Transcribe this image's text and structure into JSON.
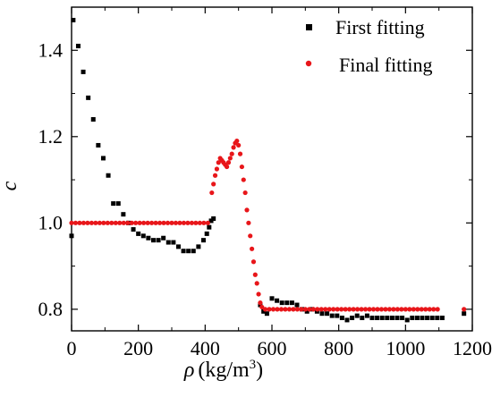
{
  "chart_data": {
    "type": "scatter",
    "xlabel": "ρ (kg/m³)",
    "xlabel_symbol": "ρ",
    "xlabel_unit": "(kg/m",
    "xlabel_sup": "3",
    "xlabel_close": ")",
    "ylabel": "c",
    "xlim": [
      0,
      1200
    ],
    "ylim": [
      0.75,
      1.5
    ],
    "xticks": [
      0,
      200,
      400,
      600,
      800,
      1000,
      1200
    ],
    "yticks": [
      0.8,
      1.0,
      1.2,
      1.4
    ],
    "xtick_labels": [
      "0",
      "200",
      "400",
      "600",
      "800",
      "1000",
      "1200"
    ],
    "ytick_labels": [
      "0.8",
      "1.0",
      "1.2",
      "1.4"
    ],
    "legend_position": "top-right",
    "grid": false,
    "series": [
      {
        "name": "First fitting",
        "color": "#000000",
        "marker": "square",
        "points": [
          [
            0,
            0.97
          ],
          [
            5,
            1.47
          ],
          [
            20,
            1.41
          ],
          [
            35,
            1.35
          ],
          [
            50,
            1.29
          ],
          [
            65,
            1.24
          ],
          [
            80,
            1.18
          ],
          [
            95,
            1.15
          ],
          [
            110,
            1.11
          ],
          [
            125,
            1.045
          ],
          [
            140,
            1.045
          ],
          [
            155,
            1.02
          ],
          [
            170,
            1.0
          ],
          [
            185,
            0.985
          ],
          [
            200,
            0.975
          ],
          [
            215,
            0.97
          ],
          [
            230,
            0.965
          ],
          [
            245,
            0.96
          ],
          [
            260,
            0.96
          ],
          [
            275,
            0.965
          ],
          [
            290,
            0.955
          ],
          [
            305,
            0.955
          ],
          [
            320,
            0.945
          ],
          [
            335,
            0.935
          ],
          [
            350,
            0.935
          ],
          [
            365,
            0.935
          ],
          [
            380,
            0.945
          ],
          [
            395,
            0.96
          ],
          [
            405,
            0.975
          ],
          [
            412,
            0.99
          ],
          [
            418,
            1.005
          ],
          [
            425,
            1.01
          ],
          [
            565,
            0.81
          ],
          [
            575,
            0.795
          ],
          [
            585,
            0.79
          ],
          [
            600,
            0.825
          ],
          [
            615,
            0.82
          ],
          [
            630,
            0.815
          ],
          [
            645,
            0.815
          ],
          [
            660,
            0.815
          ],
          [
            675,
            0.81
          ],
          [
            690,
            0.8
          ],
          [
            705,
            0.795
          ],
          [
            720,
            0.8
          ],
          [
            735,
            0.795
          ],
          [
            750,
            0.79
          ],
          [
            765,
            0.79
          ],
          [
            780,
            0.785
          ],
          [
            795,
            0.785
          ],
          [
            810,
            0.78
          ],
          [
            825,
            0.775
          ],
          [
            840,
            0.78
          ],
          [
            855,
            0.785
          ],
          [
            870,
            0.78
          ],
          [
            885,
            0.785
          ],
          [
            900,
            0.78
          ],
          [
            915,
            0.78
          ],
          [
            930,
            0.78
          ],
          [
            945,
            0.78
          ],
          [
            960,
            0.78
          ],
          [
            975,
            0.78
          ],
          [
            990,
            0.78
          ],
          [
            1005,
            0.775
          ],
          [
            1020,
            0.78
          ],
          [
            1035,
            0.78
          ],
          [
            1050,
            0.78
          ],
          [
            1065,
            0.78
          ],
          [
            1080,
            0.78
          ],
          [
            1095,
            0.78
          ],
          [
            1110,
            0.78
          ],
          [
            1175,
            0.79
          ]
        ]
      },
      {
        "name": "Final fitting",
        "color": "#e8161a",
        "marker": "circle",
        "points": [
          [
            0,
            1.0
          ],
          [
            12,
            1.0
          ],
          [
            24,
            1.0
          ],
          [
            36,
            1.0
          ],
          [
            48,
            1.0
          ],
          [
            60,
            1.0
          ],
          [
            72,
            1.0
          ],
          [
            84,
            1.0
          ],
          [
            96,
            1.0
          ],
          [
            108,
            1.0
          ],
          [
            120,
            1.0
          ],
          [
            132,
            1.0
          ],
          [
            144,
            1.0
          ],
          [
            156,
            1.0
          ],
          [
            168,
            1.0
          ],
          [
            180,
            1.0
          ],
          [
            192,
            1.0
          ],
          [
            204,
            1.0
          ],
          [
            216,
            1.0
          ],
          [
            228,
            1.0
          ],
          [
            240,
            1.0
          ],
          [
            252,
            1.0
          ],
          [
            264,
            1.0
          ],
          [
            276,
            1.0
          ],
          [
            288,
            1.0
          ],
          [
            300,
            1.0
          ],
          [
            312,
            1.0
          ],
          [
            324,
            1.0
          ],
          [
            336,
            1.0
          ],
          [
            348,
            1.0
          ],
          [
            360,
            1.0
          ],
          [
            372,
            1.0
          ],
          [
            384,
            1.0
          ],
          [
            396,
            1.0
          ],
          [
            408,
            1.0
          ],
          [
            420,
            1.07
          ],
          [
            425,
            1.09
          ],
          [
            430,
            1.11
          ],
          [
            435,
            1.125
          ],
          [
            440,
            1.14
          ],
          [
            445,
            1.15
          ],
          [
            450,
            1.145
          ],
          [
            455,
            1.14
          ],
          [
            460,
            1.135
          ],
          [
            465,
            1.13
          ],
          [
            470,
            1.14
          ],
          [
            475,
            1.15
          ],
          [
            480,
            1.16
          ],
          [
            485,
            1.175
          ],
          [
            490,
            1.185
          ],
          [
            495,
            1.19
          ],
          [
            500,
            1.18
          ],
          [
            505,
            1.16
          ],
          [
            510,
            1.13
          ],
          [
            515,
            1.1
          ],
          [
            520,
            1.07
          ],
          [
            525,
            1.03
          ],
          [
            530,
            1.0
          ],
          [
            535,
            0.97
          ],
          [
            540,
            0.94
          ],
          [
            545,
            0.91
          ],
          [
            550,
            0.88
          ],
          [
            555,
            0.86
          ],
          [
            560,
            0.835
          ],
          [
            565,
            0.815
          ],
          [
            570,
            0.805
          ],
          [
            580,
            0.8
          ],
          [
            592,
            0.8
          ],
          [
            604,
            0.8
          ],
          [
            616,
            0.8
          ],
          [
            628,
            0.8
          ],
          [
            640,
            0.8
          ],
          [
            652,
            0.8
          ],
          [
            664,
            0.8
          ],
          [
            676,
            0.8
          ],
          [
            688,
            0.8
          ],
          [
            700,
            0.8
          ],
          [
            712,
            0.8
          ],
          [
            724,
            0.8
          ],
          [
            736,
            0.8
          ],
          [
            748,
            0.8
          ],
          [
            760,
            0.8
          ],
          [
            772,
            0.8
          ],
          [
            784,
            0.8
          ],
          [
            796,
            0.8
          ],
          [
            808,
            0.8
          ],
          [
            820,
            0.8
          ],
          [
            832,
            0.8
          ],
          [
            844,
            0.8
          ],
          [
            856,
            0.8
          ],
          [
            868,
            0.8
          ],
          [
            880,
            0.8
          ],
          [
            892,
            0.8
          ],
          [
            904,
            0.8
          ],
          [
            916,
            0.8
          ],
          [
            928,
            0.8
          ],
          [
            940,
            0.8
          ],
          [
            952,
            0.8
          ],
          [
            964,
            0.8
          ],
          [
            976,
            0.8
          ],
          [
            988,
            0.8
          ],
          [
            1000,
            0.8
          ],
          [
            1012,
            0.8
          ],
          [
            1024,
            0.8
          ],
          [
            1036,
            0.8
          ],
          [
            1048,
            0.8
          ],
          [
            1060,
            0.8
          ],
          [
            1072,
            0.8
          ],
          [
            1084,
            0.8
          ],
          [
            1096,
            0.8
          ],
          [
            1175,
            0.8
          ]
        ]
      }
    ]
  }
}
